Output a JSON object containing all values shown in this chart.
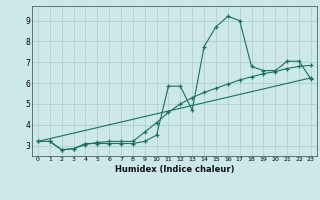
{
  "xlabel": "Humidex (Indice chaleur)",
  "bg_color": "#cce8e8",
  "grid_color": "#aacccc",
  "line_color": "#1a7060",
  "xlim": [
    -0.5,
    23.5
  ],
  "ylim": [
    2.5,
    9.7
  ],
  "xticks": [
    0,
    1,
    2,
    3,
    4,
    5,
    6,
    7,
    8,
    9,
    10,
    11,
    12,
    13,
    14,
    15,
    16,
    17,
    18,
    19,
    20,
    21,
    22,
    23
  ],
  "yticks": [
    3,
    4,
    5,
    6,
    7,
    8,
    9
  ],
  "line1_x": [
    0,
    1,
    2,
    3,
    4,
    5,
    6,
    7,
    8,
    9,
    10,
    11,
    12,
    13,
    14,
    15,
    16,
    17,
    18,
    19,
    20,
    21,
    22,
    23
  ],
  "line1_y": [
    3.2,
    3.2,
    2.8,
    2.85,
    3.1,
    3.1,
    3.1,
    3.1,
    3.1,
    3.2,
    3.5,
    5.85,
    5.85,
    4.7,
    7.75,
    8.7,
    9.2,
    9.0,
    6.8,
    6.6,
    6.6,
    7.05,
    7.05,
    6.2
  ],
  "line2_x": [
    1,
    2,
    3,
    4,
    5,
    6,
    7,
    8,
    9,
    10,
    11,
    12,
    13,
    14,
    15,
    16,
    17,
    18,
    19,
    20,
    21,
    22,
    23
  ],
  "line2_y": [
    3.2,
    2.8,
    2.85,
    3.05,
    3.15,
    3.2,
    3.2,
    3.2,
    3.65,
    4.1,
    4.6,
    5.0,
    5.3,
    5.55,
    5.75,
    5.95,
    6.15,
    6.3,
    6.45,
    6.55,
    6.7,
    6.8,
    6.85
  ],
  "line3_x": [
    0,
    23
  ],
  "line3_y": [
    3.2,
    6.25
  ]
}
